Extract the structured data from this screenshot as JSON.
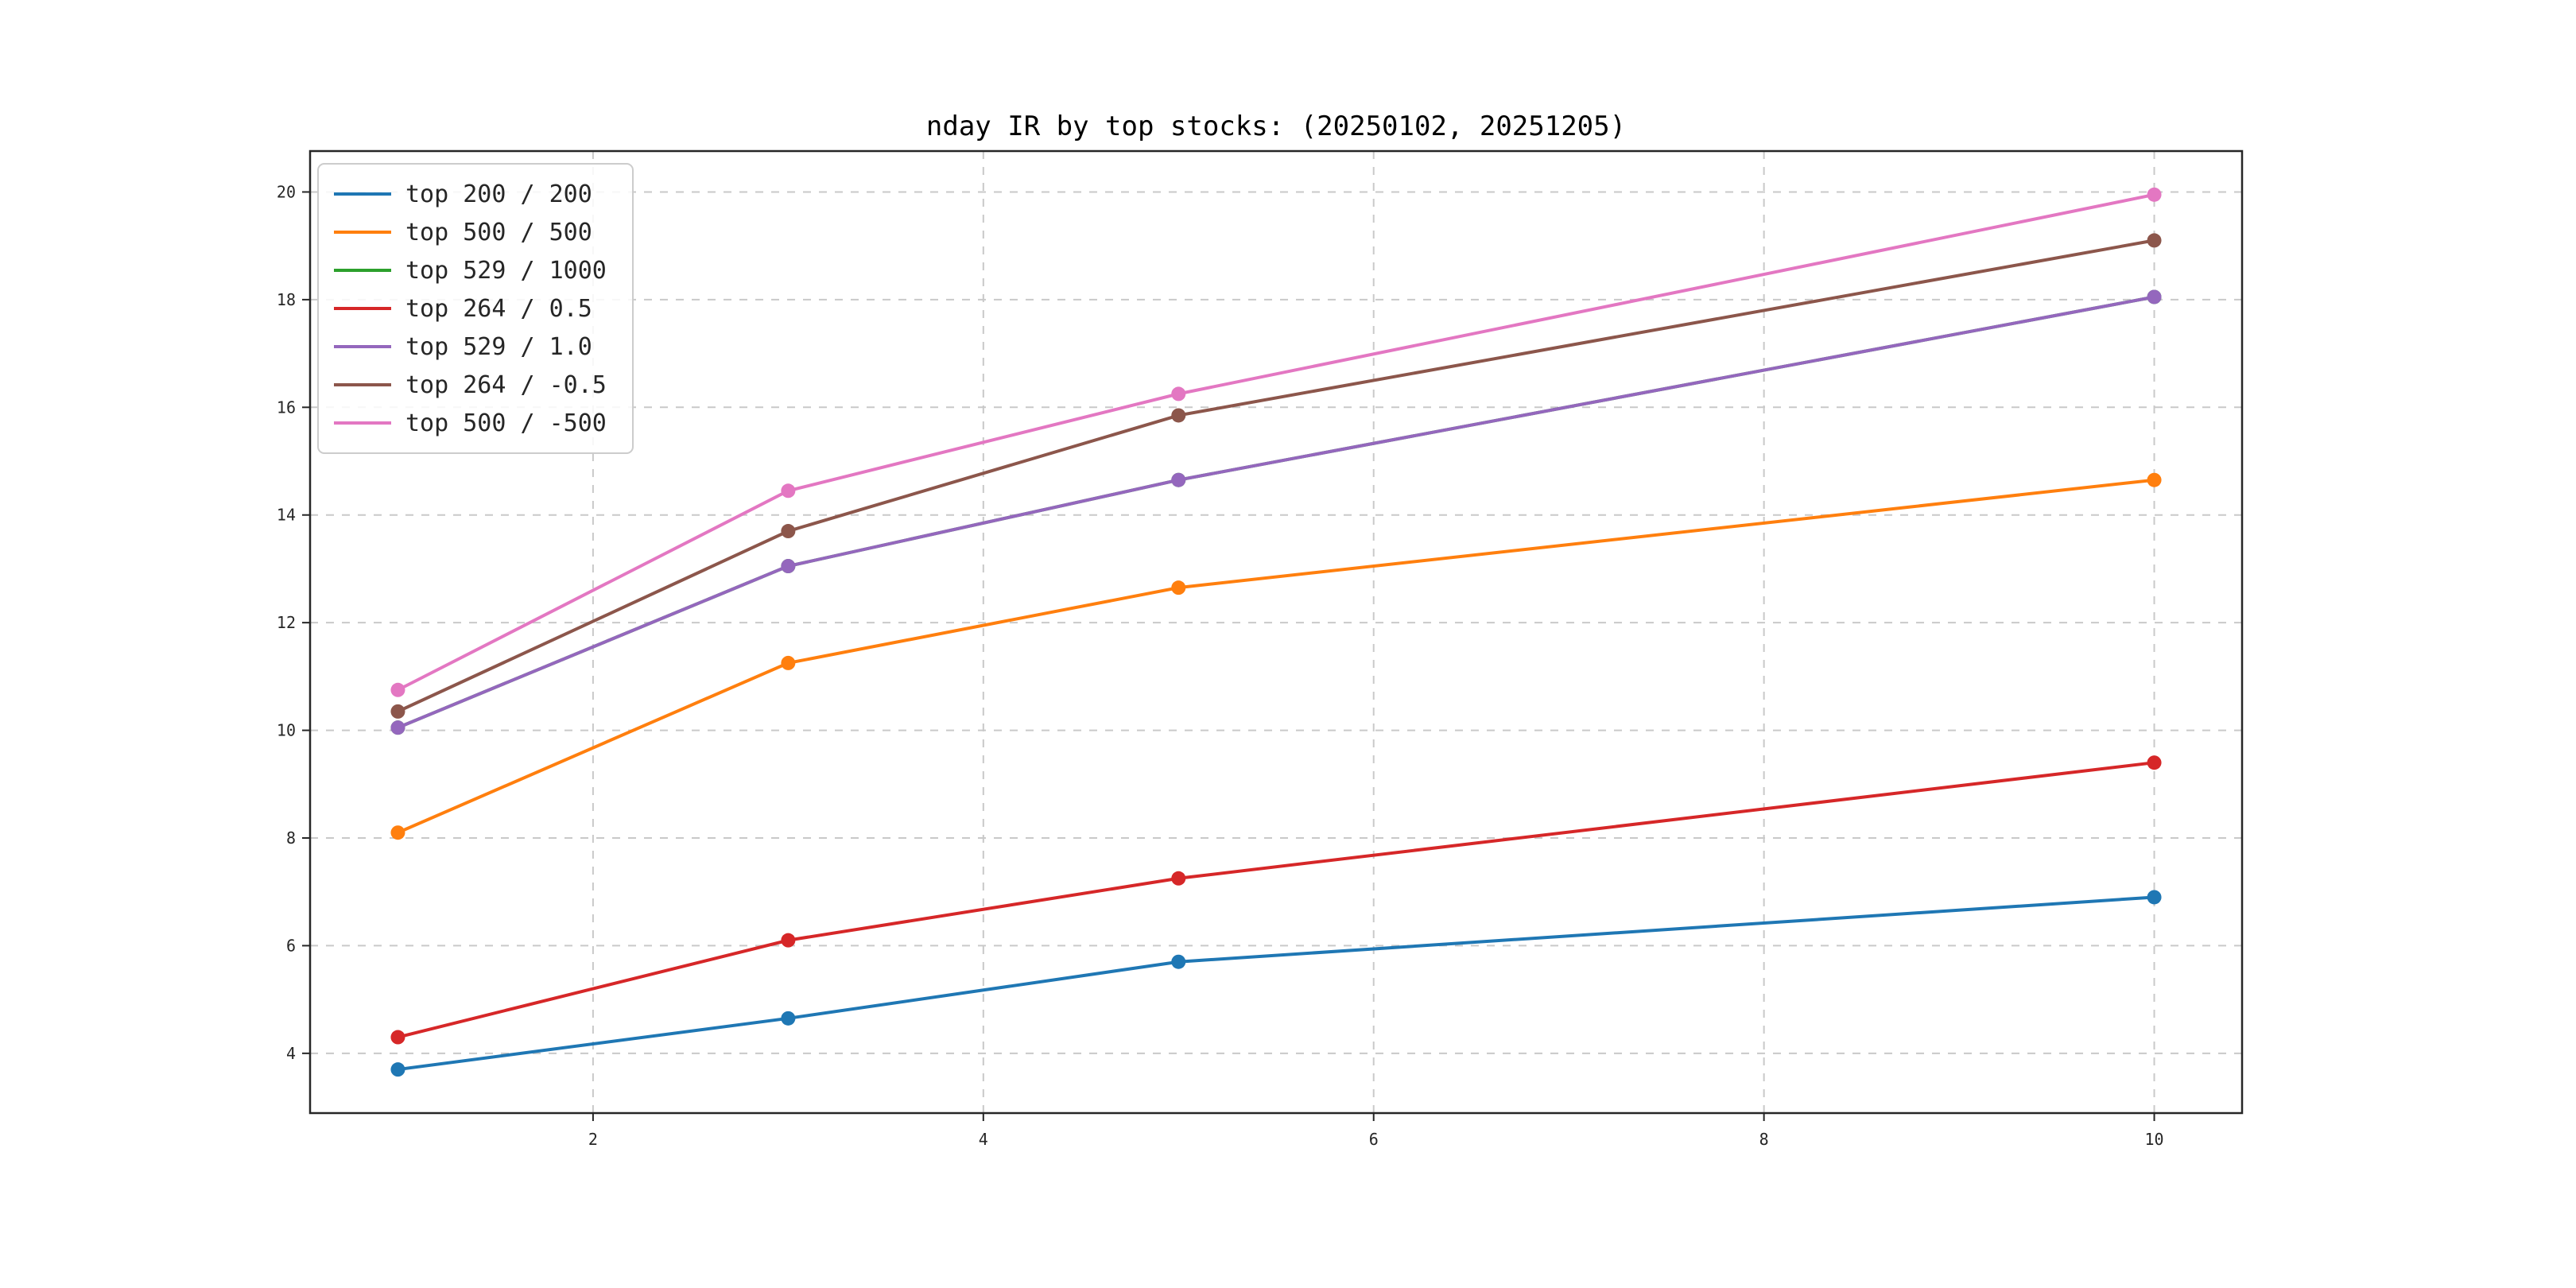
{
  "chart_data": {
    "type": "line",
    "title": "nday IR by top stocks: (20250102, 20251205)",
    "x": [
      1,
      3,
      5,
      10
    ],
    "xticks": [
      2,
      4,
      6,
      8,
      10
    ],
    "yticks": [
      4,
      6,
      8,
      10,
      12,
      14,
      16,
      18,
      20
    ],
    "xlim": [
      0.55,
      10.45
    ],
    "ylim": [
      2.89,
      20.76
    ],
    "grid": "dashed",
    "legend_position": "upper-left",
    "series": [
      {
        "name": "top 200 / 200",
        "color": "#1f77b4",
        "values": [
          3.7,
          4.65,
          5.7,
          6.9
        ]
      },
      {
        "name": "top 500 / 500",
        "color": "#ff7f0e",
        "values": [
          8.1,
          11.25,
          12.65,
          14.65
        ]
      },
      {
        "name": "top 529 / 1000",
        "color": "#2ca02c",
        "values": [
          10.05,
          13.05,
          14.65,
          18.05
        ]
      },
      {
        "name": "top 264 / 0.5",
        "color": "#d62728",
        "values": [
          4.3,
          6.1,
          7.25,
          9.4
        ]
      },
      {
        "name": "top 529 / 1.0",
        "color": "#9467bd",
        "values": [
          10.05,
          13.05,
          14.65,
          18.05
        ]
      },
      {
        "name": "top 264 / -0.5",
        "color": "#8c564b",
        "values": [
          10.35,
          13.7,
          15.85,
          19.1
        ]
      },
      {
        "name": "top 500 / -500",
        "color": "#e377c2",
        "values": [
          10.75,
          14.45,
          16.25,
          19.95
        ]
      }
    ]
  }
}
